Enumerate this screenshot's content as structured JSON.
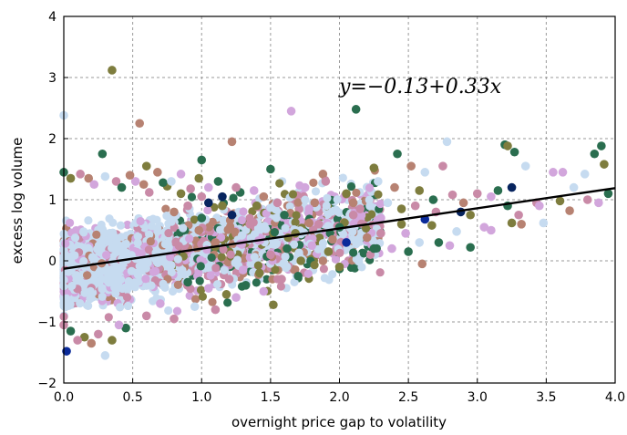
{
  "chart_data": {
    "type": "scatter",
    "xlabel": "overnight price gap to volatility",
    "ylabel": "excess log volume",
    "xlim": [
      0.0,
      4.0
    ],
    "ylim": [
      -2,
      4
    ],
    "xticks": [
      "0.0",
      "0.5",
      "1.0",
      "1.5",
      "2.0",
      "2.5",
      "3.0",
      "3.5",
      "4.0"
    ],
    "yticks": [
      "−2",
      "−1",
      "0",
      "1",
      "2",
      "3",
      "4"
    ],
    "grid": true,
    "annotation": "y=−0.13+0.33x",
    "fit_line": {
      "intercept": -0.13,
      "slope": 0.33,
      "color": "#000000"
    },
    "marker_colors": [
      "#c6dbf0",
      "#d2a6dc",
      "#c98aa7",
      "#b78272",
      "#7e7d3e",
      "#2a6e4f",
      "#07245e",
      "#0b2b9a"
    ],
    "cloud_generator": {
      "seed": 7,
      "count": 2600
    },
    "points": [
      [
        0.35,
        3.12,
        4
      ],
      [
        0.55,
        2.25,
        3
      ],
      [
        0.0,
        2.38,
        0
      ],
      [
        0.28,
        1.75,
        5
      ],
      [
        1.22,
        1.95,
        3
      ],
      [
        1.65,
        2.45,
        1
      ],
      [
        2.12,
        2.48,
        5
      ],
      [
        0.6,
        1.55,
        4
      ],
      [
        1.0,
        1.65,
        5
      ],
      [
        1.5,
        1.5,
        5
      ],
      [
        1.88,
        1.42,
        3
      ],
      [
        2.25,
        1.52,
        4
      ],
      [
        2.42,
        1.75,
        5
      ],
      [
        2.52,
        1.55,
        3
      ],
      [
        2.62,
        1.45,
        0
      ],
      [
        2.75,
        1.55,
        2
      ],
      [
        2.78,
        1.95,
        0
      ],
      [
        3.2,
        1.9,
        5
      ],
      [
        3.22,
        1.88,
        4
      ],
      [
        3.27,
        1.78,
        5
      ],
      [
        3.35,
        1.55,
        0
      ],
      [
        3.55,
        1.45,
        1
      ],
      [
        3.62,
        1.45,
        1
      ],
      [
        3.78,
        1.42,
        0
      ],
      [
        3.85,
        1.75,
        5
      ],
      [
        3.9,
        1.88,
        5
      ],
      [
        3.92,
        1.58,
        4
      ],
      [
        3.67,
        0.82,
        3
      ],
      [
        3.95,
        1.1,
        5
      ],
      [
        3.88,
        0.95,
        1
      ],
      [
        3.43,
        0.95,
        2
      ],
      [
        3.1,
        1.05,
        1
      ],
      [
        3.0,
        1.1,
        2
      ],
      [
        2.95,
        0.75,
        4
      ],
      [
        3.05,
        0.55,
        1
      ],
      [
        2.95,
        0.22,
        5
      ],
      [
        3.25,
        0.62,
        4
      ],
      [
        3.32,
        0.6,
        3
      ],
      [
        3.25,
        1.2,
        6
      ],
      [
        3.22,
        0.9,
        5
      ],
      [
        2.88,
        0.8,
        6
      ],
      [
        2.72,
        0.3,
        5
      ],
      [
        2.85,
        0.48,
        0
      ],
      [
        2.67,
        0.58,
        4
      ],
      [
        2.62,
        0.68,
        7
      ],
      [
        2.6,
        -0.05,
        3
      ],
      [
        2.55,
        0.9,
        2
      ],
      [
        2.45,
        0.6,
        4
      ],
      [
        2.35,
        0.95,
        0
      ],
      [
        2.3,
        0.7,
        1
      ],
      [
        2.25,
        0.2,
        5
      ],
      [
        2.2,
        0.38,
        3
      ],
      [
        2.1,
        0.75,
        2
      ],
      [
        2.05,
        0.3,
        7
      ],
      [
        2.0,
        0.55,
        5
      ],
      [
        1.95,
        0.35,
        3
      ],
      [
        1.92,
        0.15,
        4
      ],
      [
        1.85,
        0.6,
        2
      ],
      [
        1.82,
        0.95,
        3
      ],
      [
        1.78,
        0.85,
        1
      ],
      [
        1.72,
        0.0,
        4
      ],
      [
        1.7,
        -0.25,
        5
      ],
      [
        1.68,
        0.45,
        4
      ],
      [
        1.62,
        0.2,
        5
      ],
      [
        1.58,
        -0.3,
        2
      ],
      [
        1.52,
        -0.72,
        4
      ],
      [
        1.45,
        -0.5,
        1
      ],
      [
        1.4,
        0.9,
        4
      ],
      [
        1.35,
        0.6,
        2
      ],
      [
        1.32,
        -0.4,
        5
      ],
      [
        1.28,
        1.12,
        5
      ],
      [
        1.22,
        0.75,
        6
      ],
      [
        1.18,
        -0.55,
        4
      ],
      [
        1.1,
        0.3,
        3
      ],
      [
        1.05,
        -0.45,
        1
      ],
      [
        1.0,
        1.05,
        2
      ],
      [
        0.95,
        -0.75,
        0
      ],
      [
        0.9,
        -0.35,
        5
      ],
      [
        0.85,
        1.1,
        4
      ],
      [
        0.8,
        -0.95,
        2
      ],
      [
        0.75,
        1.22,
        4
      ],
      [
        0.7,
        -0.7,
        1
      ],
      [
        0.6,
        -0.9,
        2
      ],
      [
        0.58,
        1.25,
        3
      ],
      [
        0.52,
        1.3,
        1
      ],
      [
        0.45,
        -1.1,
        5
      ],
      [
        0.4,
        -1.05,
        1
      ],
      [
        0.35,
        -1.3,
        4
      ],
      [
        0.3,
        -1.55,
        0
      ],
      [
        0.25,
        -1.2,
        2
      ],
      [
        0.2,
        -1.35,
        3
      ],
      [
        0.15,
        -1.25,
        4
      ],
      [
        0.1,
        -1.3,
        2
      ],
      [
        0.05,
        -1.15,
        5
      ],
      [
        0.02,
        -1.48,
        7
      ],
      [
        0.0,
        -1.05,
        2
      ],
      [
        0.0,
        1.45,
        5
      ],
      [
        0.05,
        1.35,
        4
      ],
      [
        0.12,
        1.42,
        2
      ],
      [
        0.18,
        1.35,
        3
      ],
      [
        0.22,
        1.25,
        1
      ],
      [
        0.3,
        1.38,
        0
      ],
      [
        0.38,
        1.3,
        2
      ],
      [
        0.42,
        1.2,
        5
      ],
      [
        0.48,
        1.4,
        3
      ],
      [
        0.62,
        1.12,
        2
      ],
      [
        0.68,
        1.45,
        3
      ],
      [
        0.72,
        1.28,
        5
      ],
      [
        0.78,
        1.3,
        0
      ],
      [
        0.85,
        1.42,
        1
      ],
      [
        0.92,
        1.18,
        2
      ],
      [
        0.98,
        1.35,
        4
      ],
      [
        1.05,
        1.2,
        1
      ],
      [
        1.12,
        1.3,
        5
      ],
      [
        1.15,
        1.05,
        6
      ],
      [
        1.25,
        1.2,
        2
      ],
      [
        1.38,
        1.15,
        1
      ],
      [
        1.45,
        1.05,
        3
      ],
      [
        1.55,
        0.95,
        2
      ],
      [
        1.6,
        0.75,
        5
      ],
      [
        1.75,
        1.2,
        1
      ],
      [
        1.78,
        0.62,
        3
      ],
      [
        1.9,
        1.3,
        2
      ],
      [
        2.05,
        1.1,
        4
      ],
      [
        2.15,
        0.85,
        2
      ],
      [
        2.28,
        1.3,
        0
      ],
      [
        2.4,
        1.2,
        3
      ],
      [
        2.48,
        0.45,
        1
      ],
      [
        2.58,
        1.15,
        4
      ],
      [
        2.68,
        1.0,
        5
      ],
      [
        2.82,
        1.08,
        2
      ],
      [
        2.9,
        0.95,
        3
      ],
      [
        3.15,
        1.15,
        5
      ],
      [
        3.45,
        0.9,
        1
      ],
      [
        3.7,
        1.2,
        0
      ],
      [
        3.8,
        1.0,
        2
      ],
      [
        1.2,
        -0.3,
        2
      ],
      [
        1.3,
        -0.15,
        1
      ],
      [
        1.42,
        -0.2,
        4
      ],
      [
        1.5,
        0.1,
        2
      ],
      [
        1.6,
        -0.05,
        0
      ],
      [
        1.8,
        0.25,
        1
      ],
      [
        1.88,
        0.0,
        3
      ],
      [
        2.0,
        -0.1,
        4
      ],
      [
        2.1,
        0.95,
        3
      ],
      [
        2.3,
        0.45,
        2
      ],
      [
        2.38,
        0.2,
        1
      ],
      [
        2.5,
        0.15,
        5
      ],
      [
        2.7,
        0.8,
        2
      ],
      [
        2.8,
        0.25,
        1
      ],
      [
        2.58,
        0.3,
        0
      ],
      [
        2.45,
        0.85,
        4
      ],
      [
        3.1,
        0.5,
        1
      ],
      [
        3.3,
        0.75,
        2
      ],
      [
        3.48,
        0.62,
        0
      ],
      [
        3.6,
        0.98,
        4
      ],
      [
        0.8,
        0.8,
        3
      ],
      [
        0.9,
        0.9,
        2
      ],
      [
        1.0,
        0.7,
        5
      ],
      [
        1.1,
        -0.8,
        2
      ],
      [
        1.15,
        0.9,
        4
      ],
      [
        1.05,
        0.95,
        6
      ],
      [
        0.98,
        0.5,
        3
      ],
      [
        1.25,
        -0.6,
        1
      ]
    ]
  }
}
